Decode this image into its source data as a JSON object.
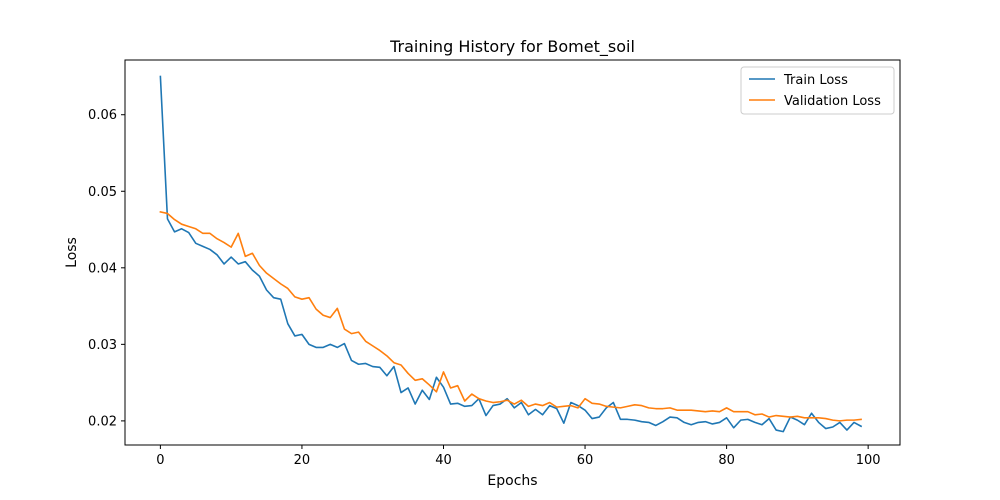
{
  "chart_data": {
    "type": "line",
    "title": "Training History for Bomet_soil",
    "xlabel": "Epochs",
    "ylabel": "Loss",
    "xlim": [
      -5,
      104.5
    ],
    "ylim": [
      0.01685,
      0.06715
    ],
    "xticks": [
      0,
      20,
      40,
      60,
      80,
      100
    ],
    "xtick_labels": [
      "0",
      "20",
      "40",
      "60",
      "80",
      "100"
    ],
    "yticks": [
      0.02,
      0.03,
      0.04,
      0.05,
      0.06
    ],
    "ytick_labels": [
      "0.02",
      "0.03",
      "0.04",
      "0.05",
      "0.06"
    ],
    "grid": false,
    "legend_position": "top-right",
    "series": [
      {
        "name": "Train Loss",
        "color": "#1f77b4",
        "values": [
          0.065,
          0.0464,
          0.0447,
          0.0451,
          0.0446,
          0.0432,
          0.0428,
          0.0424,
          0.0417,
          0.0405,
          0.0414,
          0.0405,
          0.0408,
          0.0397,
          0.0389,
          0.0371,
          0.0361,
          0.0359,
          0.0327,
          0.0311,
          0.0313,
          0.03,
          0.0296,
          0.0296,
          0.03,
          0.0296,
          0.0301,
          0.0279,
          0.0274,
          0.0275,
          0.0271,
          0.027,
          0.0259,
          0.0271,
          0.0237,
          0.0243,
          0.0222,
          0.024,
          0.0228,
          0.0257,
          0.0244,
          0.0222,
          0.0223,
          0.0219,
          0.022,
          0.0229,
          0.0207,
          0.022,
          0.0222,
          0.0229,
          0.0217,
          0.0224,
          0.0208,
          0.0215,
          0.0208,
          0.022,
          0.0216,
          0.0197,
          0.0224,
          0.022,
          0.0214,
          0.0203,
          0.0205,
          0.0217,
          0.0224,
          0.0202,
          0.0202,
          0.0201,
          0.0199,
          0.0198,
          0.0194,
          0.0199,
          0.0205,
          0.0204,
          0.0198,
          0.0195,
          0.0198,
          0.0199,
          0.0196,
          0.0198,
          0.0204,
          0.0191,
          0.0201,
          0.0202,
          0.0198,
          0.0195,
          0.0203,
          0.0188,
          0.0186,
          0.0205,
          0.0201,
          0.0195,
          0.021,
          0.0198,
          0.019,
          0.0192,
          0.0198,
          0.0188,
          0.0198,
          0.0193
        ]
      },
      {
        "name": "Validation Loss",
        "color": "#ff7f0e",
        "values": [
          0.0473,
          0.0471,
          0.0463,
          0.0457,
          0.0454,
          0.0451,
          0.0445,
          0.0445,
          0.0438,
          0.0433,
          0.0427,
          0.0445,
          0.0415,
          0.0419,
          0.0403,
          0.0393,
          0.0386,
          0.0379,
          0.0373,
          0.0362,
          0.0359,
          0.0361,
          0.0346,
          0.0338,
          0.0335,
          0.0347,
          0.032,
          0.0314,
          0.0316,
          0.0304,
          0.0298,
          0.0292,
          0.0285,
          0.0276,
          0.0273,
          0.0262,
          0.0253,
          0.0255,
          0.0247,
          0.0238,
          0.0264,
          0.0243,
          0.0246,
          0.0226,
          0.0235,
          0.0229,
          0.0226,
          0.0224,
          0.0225,
          0.0227,
          0.0222,
          0.0227,
          0.0219,
          0.0222,
          0.022,
          0.0224,
          0.0218,
          0.0219,
          0.022,
          0.0217,
          0.0229,
          0.0223,
          0.0222,
          0.0219,
          0.0218,
          0.0217,
          0.0219,
          0.0221,
          0.022,
          0.0217,
          0.0216,
          0.0216,
          0.0217,
          0.0214,
          0.0214,
          0.0214,
          0.0213,
          0.0212,
          0.0213,
          0.0212,
          0.0217,
          0.0212,
          0.0212,
          0.0212,
          0.0208,
          0.0209,
          0.0205,
          0.0207,
          0.0206,
          0.0205,
          0.0206,
          0.0204,
          0.0204,
          0.0204,
          0.0203,
          0.0201,
          0.02,
          0.0201,
          0.0201,
          0.0202
        ]
      }
    ]
  }
}
